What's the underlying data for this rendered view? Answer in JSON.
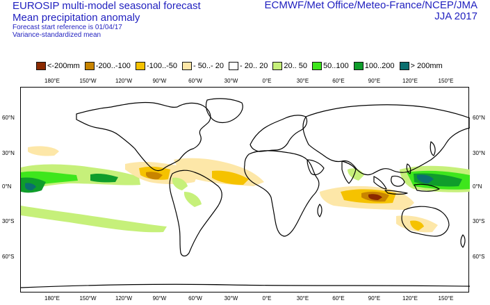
{
  "header": {
    "left_title_1": "EUROSIP multi-model seasonal forecast",
    "left_title_2": "Mean precipitation anomaly",
    "left_sub_1": "Forecast start reference is 01/04/17",
    "left_sub_2": "Variance-standardized mean",
    "right_title_1": "ECMWF/Met Office/Meteo-France/NCEP/JMA",
    "right_title_2": "JJA 2017"
  },
  "legend": [
    {
      "label": "<-200mm",
      "color": "#8b2a00"
    },
    {
      "label": "-200..-100",
      "color": "#c88400"
    },
    {
      "label": "-100..-50",
      "color": "#f5c200"
    },
    {
      "label": "- 50..- 20",
      "color": "#fde7a8"
    },
    {
      "label": "- 20.. 20",
      "color": "#ffffff"
    },
    {
      "label": "20.. 50",
      "color": "#c6f07a"
    },
    {
      "label": "50..100",
      "color": "#3ee61c"
    },
    {
      "label": "100..200",
      "color": "#0f9d2b"
    },
    {
      "label": "> 200mm",
      "color": "#0b6f6f"
    }
  ],
  "axes": {
    "longitude_top": [
      "180°E",
      "150°W",
      "120°W",
      "90°W",
      "60°W",
      "30°W",
      "0°E",
      "30°E",
      "60°E",
      "90°E",
      "120°E",
      "150°E"
    ],
    "longitude_bottom": [
      "180°E",
      "150°W",
      "120°W",
      "90°W",
      "60°W",
      "30°W",
      "0°E",
      "30°E",
      "60°E",
      "90°E",
      "120°E",
      "150°E"
    ],
    "latitude_left": [
      "60°N",
      "30°N",
      "0°N",
      "30°S",
      "60°S"
    ],
    "latitude_right": [
      "60°N",
      "30°N",
      "0°N",
      "30°S",
      "60°S"
    ]
  },
  "colors": {
    "text_blue": "#1f1fbf",
    "coast": "#000000"
  }
}
